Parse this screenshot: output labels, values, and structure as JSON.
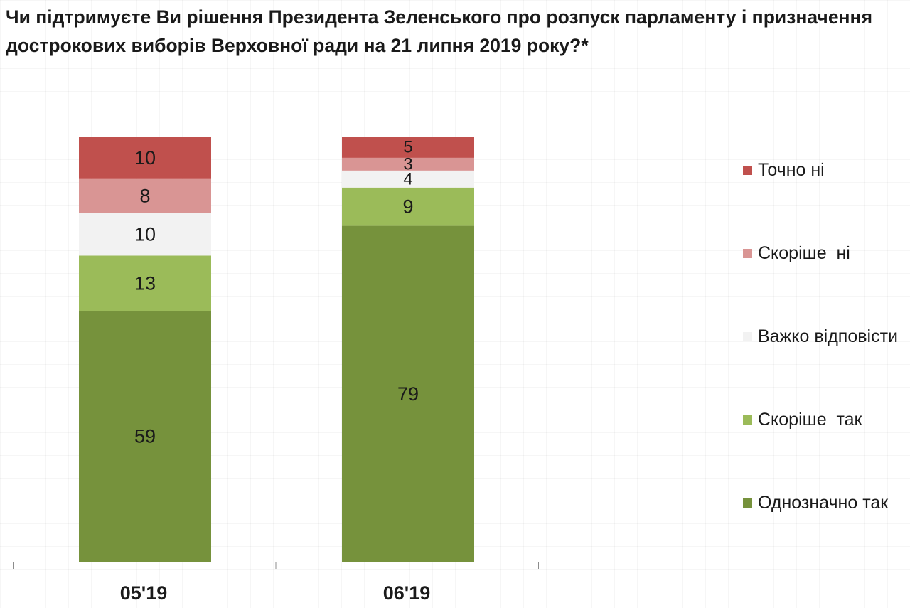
{
  "title": "Чи підтримуєте Ви рішення Президента Зеленського про розпуск парламенту і призначення дострокових виборів Верховної ради на 21 липня 2019 року?*",
  "chart_data": {
    "type": "bar",
    "stacked": true,
    "title": "Чи підтримуєте Ви рішення Президента Зеленського про розпуск парламенту і призначення дострокових виборів Верховної ради на 21 липня 2019 року?*",
    "categories": [
      "05'19",
      "06'19"
    ],
    "series": [
      {
        "name": "Однозначно так",
        "values": [
          59,
          79
        ],
        "color": "#76923c"
      },
      {
        "name": "Скоріше  так",
        "values": [
          13,
          9
        ],
        "color": "#9bbb59"
      },
      {
        "name": "Важко відповісти",
        "values": [
          10,
          4
        ],
        "color": "#f2f2f2"
      },
      {
        "name": "Скоріше  ні",
        "values": [
          8,
          3
        ],
        "color": "#d99594"
      },
      {
        "name": "Точно ні",
        "values": [
          10,
          5
        ],
        "color": "#c0504d"
      }
    ],
    "ylim": [
      0,
      100
    ],
    "grid": false,
    "data_labels": true,
    "legend_position": "right"
  }
}
